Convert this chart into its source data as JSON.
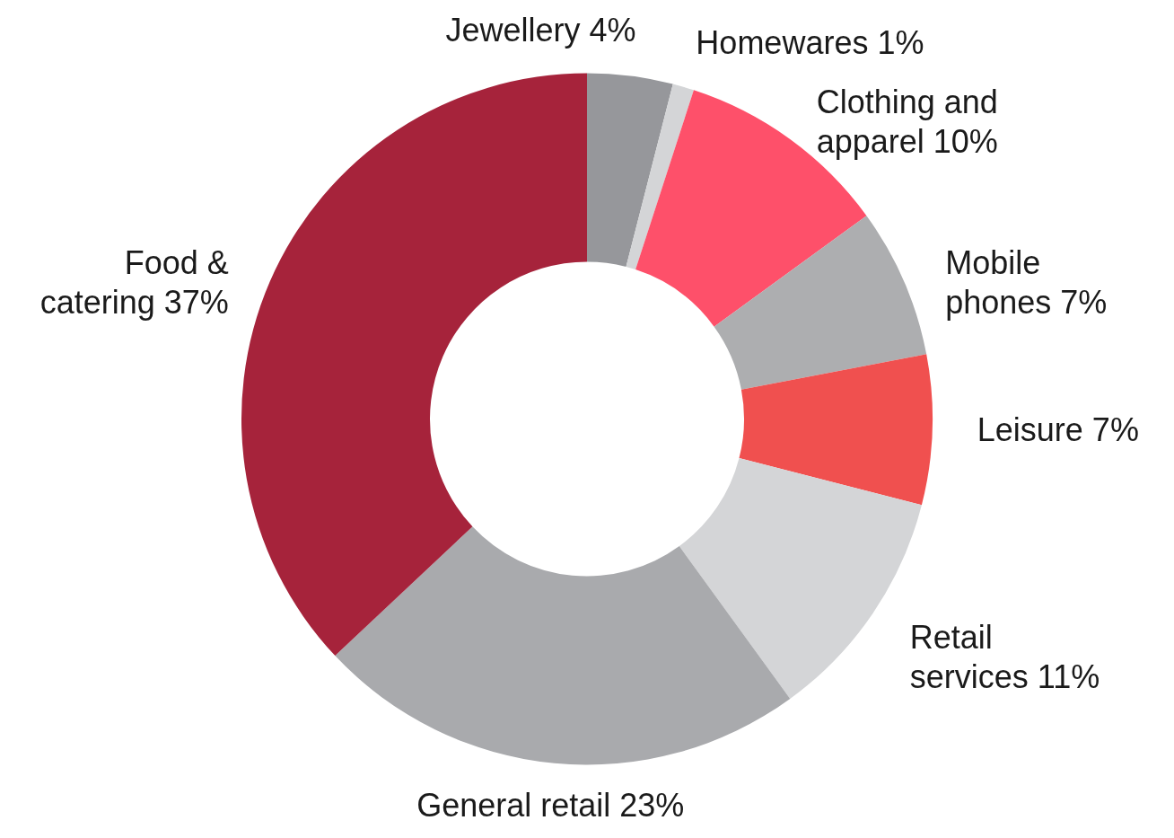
{
  "chart_data": {
    "type": "donut",
    "categories": [
      "Jewellery",
      "Homewares",
      "Clothing and apparel",
      "Mobile phones",
      "Leisure",
      "Retail services",
      "General retail",
      "Food & catering"
    ],
    "values": [
      4,
      1,
      10,
      7,
      7,
      11,
      23,
      37
    ],
    "value_labels": [
      "4%",
      "1%",
      "10%",
      "7%",
      "7%",
      "11%",
      "23%",
      "37%"
    ],
    "colors": [
      "#96979b",
      "#d4d5d7",
      "#fe506a",
      "#adaeb0",
      "#f0504f",
      "#d4d5d7",
      "#a9aaad",
      "#a6233b"
    ]
  }
}
